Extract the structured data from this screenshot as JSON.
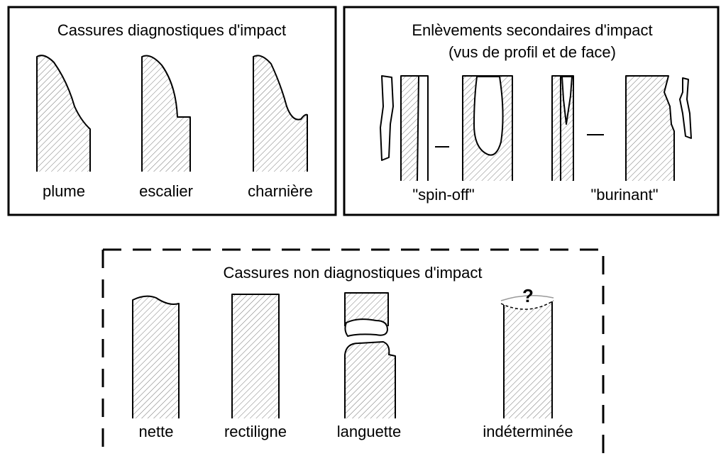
{
  "panels": [
    {
      "title": "Cassures diagnostiques d'impact",
      "items": [
        "plume",
        "escalier",
        "charnière"
      ]
    },
    {
      "title": [
        "Enlèvements secondaires d'impact",
        "(vus de profil et de face)"
      ],
      "items": [
        "\"spin-off\"",
        "\"burinant\""
      ]
    },
    {
      "title": "Cassures non diagnostiques d'impact",
      "items": [
        "nette",
        "rectiligne",
        "languette",
        "indéterminée"
      ]
    }
  ],
  "mark": "?"
}
